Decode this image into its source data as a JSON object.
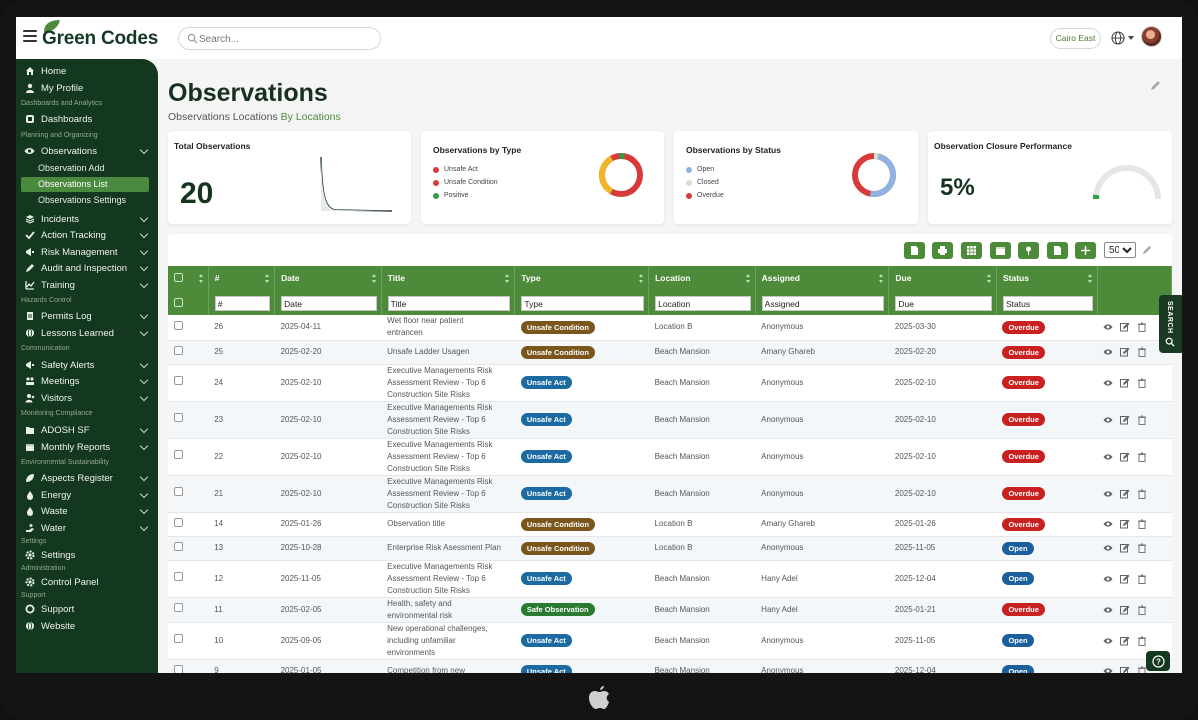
{
  "app": {
    "brand": "Green Codes"
  },
  "search": {
    "placeholder": "Search..."
  },
  "topbar": {
    "location": "Cairo East"
  },
  "sidebar": {
    "items": [
      {
        "label": "Home",
        "icon": "home-icon"
      },
      {
        "label": "My Profile",
        "icon": "user-icon"
      },
      {
        "section": "Dashboards and Analytics"
      },
      {
        "label": "Dashboards",
        "icon": "dashboard-icon"
      },
      {
        "section": "Planning and Organizing"
      },
      {
        "label": "Observations",
        "icon": "eye-icon"
      },
      {
        "label": "Incidents",
        "icon": "layers-icon"
      },
      {
        "label": "Action Tracking",
        "icon": "check-icon"
      },
      {
        "label": "Risk Management",
        "icon": "megaphone-icon"
      },
      {
        "label": "Audit and Inspection",
        "icon": "pen-icon"
      },
      {
        "label": "Training",
        "icon": "chart-icon"
      },
      {
        "section": "Hazards Control"
      },
      {
        "label": "Permits Log",
        "icon": "doc-icon"
      },
      {
        "label": "Lessons Learned",
        "icon": "globe-icon"
      },
      {
        "section": "Communication"
      },
      {
        "label": "Safety Alerts",
        "icon": "megaphone-icon"
      },
      {
        "label": "Meetings",
        "icon": "meeting-icon"
      },
      {
        "label": "Visitors",
        "icon": "users-icon"
      },
      {
        "section": "Monitoring Compliance"
      },
      {
        "label": "ADOSH SF",
        "icon": "folder-icon"
      },
      {
        "label": "Monthly Reports",
        "icon": "calendar-icon"
      },
      {
        "section": "Environmental Sustainability"
      },
      {
        "label": "Aspects Register",
        "icon": "leaf-icon"
      },
      {
        "label": "Energy",
        "icon": "drop-icon"
      },
      {
        "label": "Waste",
        "icon": "drop-icon"
      },
      {
        "label": "Water",
        "icon": "hand-icon"
      },
      {
        "section": "Settings"
      },
      {
        "label": "Settings",
        "icon": "gear-icon"
      },
      {
        "section": "Administration"
      },
      {
        "label": "Control Panel",
        "icon": "gear-icon"
      },
      {
        "section": "Support"
      },
      {
        "label": "Support",
        "icon": "support-icon"
      },
      {
        "label": "Website",
        "icon": "globe-icon"
      }
    ],
    "submenu": [
      "Observation Add",
      "Observations List",
      "Observations Settings"
    ]
  },
  "page": {
    "title": "Observations",
    "breadcrumb_a": "Observations Locations",
    "breadcrumb_b": "By Locations"
  },
  "cards": {
    "total": {
      "title": "Total Observations",
      "value": "20"
    },
    "by_type": {
      "title": "Observations by Type",
      "legend": [
        "Unsafe Act",
        "Unsafe Condition",
        "Positive"
      ],
      "colors": [
        "#d63a3a",
        "#f0b429",
        "#2f9e44"
      ]
    },
    "by_status": {
      "title": "Observations by Status",
      "legend": [
        "Open",
        "Closed",
        "Overdue"
      ],
      "colors": [
        "#8fb3e0",
        "#cfe4c8",
        "#d63a3a"
      ]
    },
    "closure": {
      "title": "Observation Closure Performance",
      "value": "5%",
      "percent": 5
    }
  },
  "table": {
    "page_size": "50",
    "headers": [
      "#",
      "Date",
      "Title",
      "Type",
      "Location",
      "Assigned",
      "Due",
      "Status"
    ],
    "filters": [
      "#",
      "Date",
      "Title",
      "Type",
      "Location",
      "Assigned",
      "Due",
      "Status"
    ],
    "rows": [
      {
        "id": "26",
        "date": "2025-04-11",
        "title": [
          "Wet floor near patient",
          "entrancen"
        ],
        "type": "Unsafe Condition",
        "location": "Location B",
        "assigned": "Anonymous",
        "due": "2025-03-30",
        "status": "Overdue"
      },
      {
        "id": "25",
        "date": "2025-02-20",
        "title": [
          "Unsafe Ladder Usagen"
        ],
        "type": "Unsafe Condition",
        "location": "Beach Mansion",
        "assigned": "Amany Ghareb",
        "due": "2025-02-20",
        "status": "Overdue"
      },
      {
        "id": "24",
        "date": "2025-02-10",
        "title": [
          "Executive Managements Risk",
          "Assessment Review - Top 6",
          "Construction Site Risks"
        ],
        "type": "Unsafe Act",
        "location": "Beach Mansion",
        "assigned": "Anonymous",
        "due": "2025-02-10",
        "status": "Overdue"
      },
      {
        "id": "23",
        "date": "2025-02-10",
        "title": [
          "Executive Managements Risk",
          "Assessment Review - Top 6",
          "Construction Site Risks"
        ],
        "type": "Unsafe Act",
        "location": "Beach Mansion",
        "assigned": "Anonymous",
        "due": "2025-02-10",
        "status": "Overdue"
      },
      {
        "id": "22",
        "date": "2025-02-10",
        "title": [
          "Executive Managements Risk",
          "Assessment Review - Top 6",
          "Construction Site Risks"
        ],
        "type": "Unsafe Act",
        "location": "Beach Mansion",
        "assigned": "Anonymous",
        "due": "2025-02-10",
        "status": "Overdue"
      },
      {
        "id": "21",
        "date": "2025-02-10",
        "title": [
          "Executive Managements Risk",
          "Assessment Review - Top 6",
          "Construction Site Risks"
        ],
        "type": "Unsafe Act",
        "location": "Beach Mansion",
        "assigned": "Anonymous",
        "due": "2025-02-10",
        "status": "Overdue"
      },
      {
        "id": "14",
        "date": "2025-01-26",
        "title": [
          "Observation title"
        ],
        "type": "Unsafe Condition",
        "location": "Location B",
        "assigned": "Amany Ghareb",
        "due": "2025-01-26",
        "status": "Overdue"
      },
      {
        "id": "13",
        "date": "2025-10-28",
        "title": [
          "Enterprise Risk Asessment Plan"
        ],
        "type": "Unsafe Condition",
        "location": "Location B",
        "assigned": "Anonymous",
        "due": "2025-11-05",
        "status": "Open"
      },
      {
        "id": "12",
        "date": "2025-11-05",
        "title": [
          "Executive Managements Risk",
          "Assessment Review - Top 6",
          "Construction Site Risks"
        ],
        "type": "Unsafe Act",
        "location": "Beach Mansion",
        "assigned": "Hany Adel",
        "due": "2025-12-04",
        "status": "Open"
      },
      {
        "id": "11",
        "date": "2025-02-05",
        "title": [
          "Health, safety and",
          "environmental risk"
        ],
        "type": "Safe Observation",
        "location": "Beach Mansion",
        "assigned": "Hany Adel",
        "due": "2025-01-21",
        "status": "Overdue"
      },
      {
        "id": "10",
        "date": "2025-09-05",
        "title": [
          "New operational challenges,",
          "including unfamiliar",
          "environments"
        ],
        "type": "Unsafe Act",
        "location": "Beach Mansion",
        "assigned": "Anonymous",
        "due": "2025-11-05",
        "status": "Open"
      },
      {
        "id": "9",
        "date": "2025-01-05",
        "title": [
          "Competition from new"
        ],
        "type": "Unsafe Act",
        "location": "Beach Mansion",
        "assigned": "Anonymous",
        "due": "2025-12-04",
        "status": "Open"
      }
    ]
  },
  "search_tab": {
    "label": "SEARCH"
  },
  "help": {
    "label": "?"
  }
}
